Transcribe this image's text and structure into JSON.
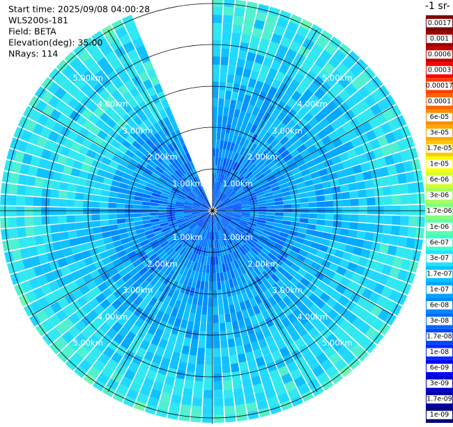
{
  "header": {
    "lines": [
      "Start time: 2025/09/08 04:00:28",
      "WLS200s-181",
      "Field: BETA",
      "Elevation(deg): 35.00",
      "NRays: 114"
    ]
  },
  "rings": {
    "labels": [
      "1.00km",
      "2.00km",
      "3.00km",
      "4.00km",
      "5.00km"
    ]
  },
  "colorbar": {
    "title": "-1 sr-",
    "labels": [
      "0.0017",
      "0.001",
      "0.0006",
      "0.0003",
      "0.00017",
      "0.0001",
      "6e-05",
      "3e-05",
      "1.7e-05",
      "1e-05",
      "6e-06",
      "3e-06",
      "1.7e-06",
      "1e-06",
      "6e-07",
      "3e-07",
      "1.7e-07",
      "1e-07",
      "6e-08",
      "3e-08",
      "1.7e-08",
      "1e-08",
      "6e-09",
      "3e-09",
      "1.7e-09",
      "1e-09"
    ],
    "colors": [
      "#800000",
      "#a00000",
      "#c80000",
      "#ff0000",
      "#ff3c00",
      "#ff6400",
      "#ff8c00",
      "#ffaa00",
      "#ffc800",
      "#ffff00",
      "#d4ff2c",
      "#a8ff58",
      "#80ff80",
      "#5cffa4",
      "#38ffd0",
      "#20e4ff",
      "#00c4ff",
      "#00a4ff",
      "#0088ff",
      "#0068ff",
      "#0048ff",
      "#0028ff",
      "#0000ff",
      "#0000d0",
      "#0000a4",
      "#000078"
    ]
  }
}
